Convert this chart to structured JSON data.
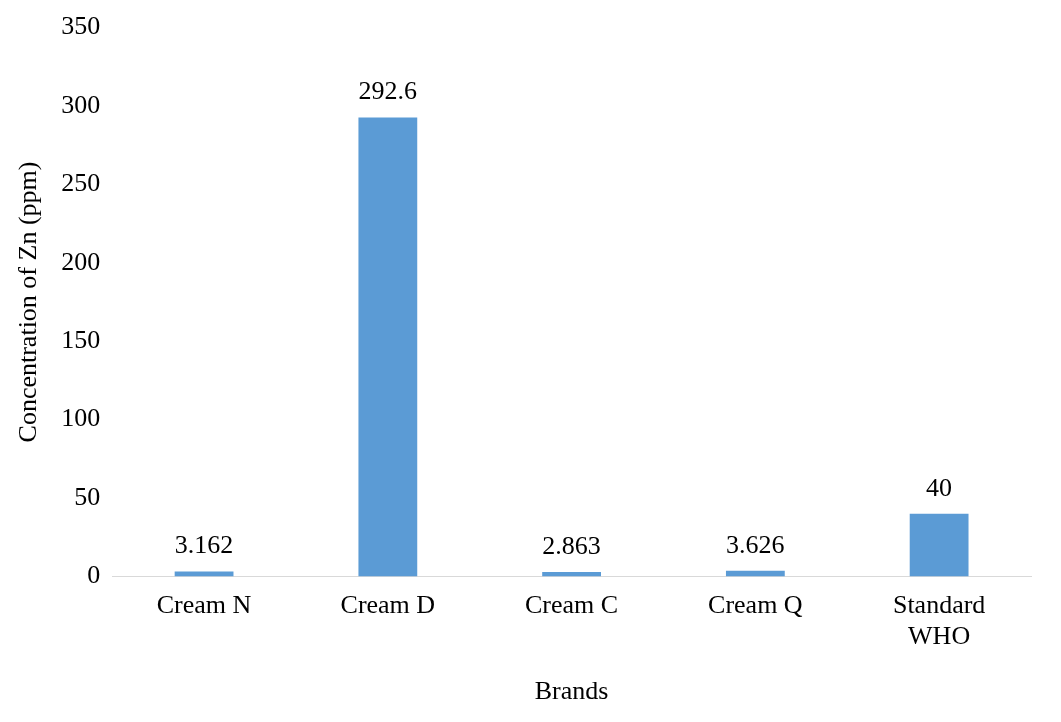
{
  "chart_data": {
    "type": "bar",
    "xlabel": "Brands",
    "ylabel": "Concentration of Zn (ppm)",
    "categories": [
      "Cream N",
      "Cream D",
      "Cream C",
      "Cream Q",
      "Standard WHO"
    ],
    "values": [
      3.162,
      292.6,
      2.863,
      3.626,
      40
    ],
    "color": "#5b9bd5",
    "ylim": [
      0,
      350
    ],
    "yticks": [
      0,
      50,
      100,
      150,
      200,
      250,
      300,
      350
    ],
    "grid": false,
    "legend": false,
    "data_labels": true
  }
}
